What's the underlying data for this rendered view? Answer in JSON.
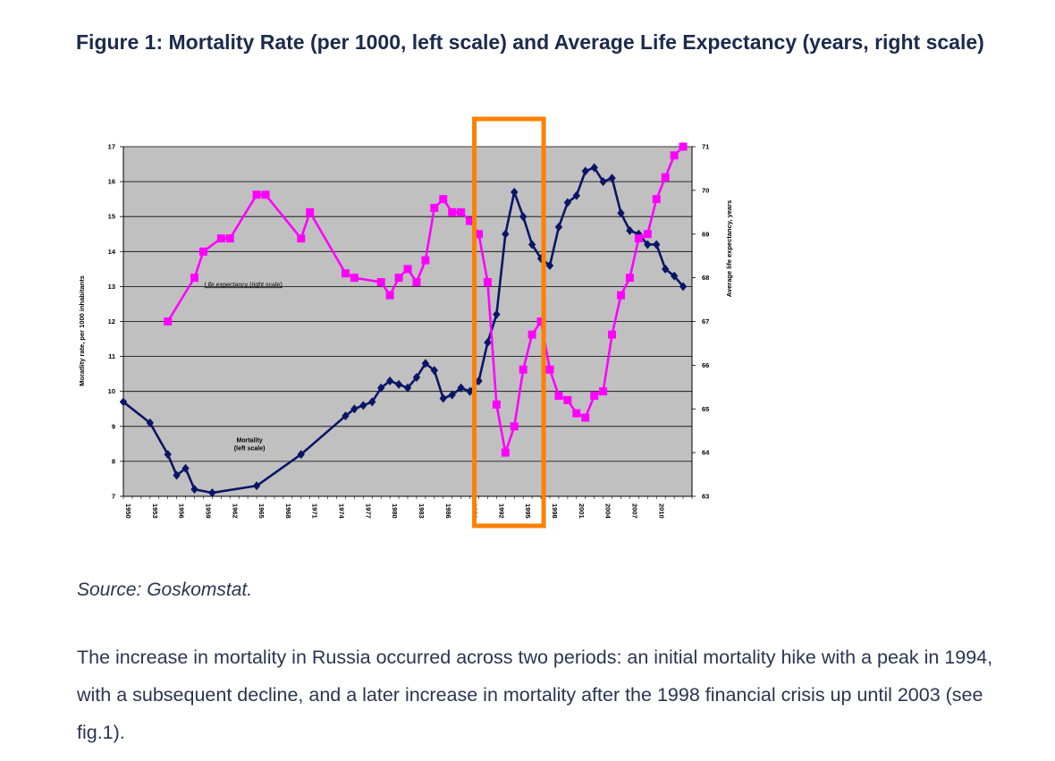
{
  "figure_title": "Figure 1: Mortality Rate (per 1000, left scale) and Average Life Expectancy (years, right scale)",
  "source_text": "Source: Goskomstat.",
  "body_text": "The increase in mortality in Russia occurred across two periods: an initial mortality hike with a peak in 1994, with a subsequent decline, and a later increase in mortality after the 1998 financial crisis up until 2003 (see fig.1).",
  "colors": {
    "mortality": "#0b1566",
    "life_expectancy": "#ff00ff",
    "plot_background": "#c0c0c0",
    "highlight_box": "#ff8000"
  },
  "chart_data": {
    "type": "line",
    "title": "",
    "ylabel": "Moratlity rate, per 1000 inhabitants",
    "y2label": "Average life expectancy, years",
    "ylim": [
      7,
      17
    ],
    "y2lim": [
      63,
      71
    ],
    "xlim": [
      1950,
      2014
    ],
    "y_ticks": [
      7,
      8,
      9,
      10,
      11,
      12,
      13,
      14,
      15,
      16,
      17
    ],
    "y2_ticks": [
      63,
      64,
      65,
      66,
      67,
      68,
      69,
      70,
      71
    ],
    "x_ticks": [
      "1950",
      "1953",
      "1956",
      "1959",
      "1962",
      "1965",
      "1968",
      "1971",
      "1974",
      "1977",
      "1980",
      "1983",
      "1986",
      "1989",
      "1992",
      "1995",
      "1998",
      "2001",
      "2004",
      "2007",
      "2010"
    ],
    "x_tick_values": [
      1950,
      1953,
      1956,
      1959,
      1962,
      1965,
      1968,
      1971,
      1974,
      1977,
      1980,
      1983,
      1986,
      1989,
      1992,
      1995,
      1998,
      2001,
      2004,
      2007,
      2010
    ],
    "grid": true,
    "highlight_range": [
      1989.5,
      1997.3
    ],
    "series": [
      {
        "name": "Mortality",
        "axis": "left",
        "label": [
          "Mortality",
          "(left scale)"
        ],
        "label_anchor": [
          1964.2,
          8.55
        ],
        "x": [
          1950,
          1953,
          1955,
          1956,
          1957,
          1958,
          1960,
          1965,
          1970,
          1975,
          1976,
          1977,
          1978,
          1979,
          1980,
          1981,
          1982,
          1983,
          1984,
          1985,
          1986,
          1987,
          1988,
          1989,
          1990,
          1991,
          1992,
          1993,
          1994,
          1995,
          1996,
          1997,
          1998,
          1999,
          2000,
          2001,
          2002,
          2003,
          2004,
          2005,
          2006,
          2007,
          2008,
          2009,
          2010,
          2011,
          2012,
          2013
        ],
        "y": [
          9.7,
          9.1,
          8.2,
          7.6,
          7.8,
          7.2,
          7.1,
          7.3,
          8.2,
          9.3,
          9.5,
          9.6,
          9.7,
          10.1,
          10.3,
          10.2,
          10.1,
          10.4,
          10.8,
          10.6,
          9.8,
          9.9,
          10.1,
          10.0,
          10.3,
          11.4,
          12.2,
          14.5,
          15.7,
          15.0,
          14.2,
          13.8,
          13.6,
          14.7,
          15.4,
          15.6,
          16.3,
          16.4,
          16.0,
          16.1,
          15.1,
          14.6,
          14.5,
          14.2,
          14.2,
          13.5,
          13.3,
          13.0
        ]
      },
      {
        "name": "Life expectancy",
        "axis": "right",
        "label": [
          "Life expectancy  (right scale)"
        ],
        "label_anchor": [
          1963.5,
          67.8
        ],
        "x": [
          1955,
          1958,
          1959,
          1961,
          1962,
          1965,
          1966,
          1970,
          1971,
          1975,
          1976,
          1979,
          1980,
          1981,
          1982,
          1983,
          1984,
          1985,
          1986,
          1987,
          1988,
          1989,
          1990,
          1991,
          1992,
          1993,
          1994,
          1995,
          1996,
          1997,
          1998,
          1999,
          2000,
          2001,
          2002,
          2003,
          2004,
          2005,
          2006,
          2007,
          2008,
          2009,
          2010,
          2011,
          2012,
          2013
        ],
        "y": [
          67.0,
          68.0,
          68.6,
          68.9,
          68.9,
          69.9,
          69.9,
          68.9,
          69.5,
          68.1,
          68.0,
          67.9,
          67.6,
          68.0,
          68.2,
          67.9,
          68.4,
          69.6,
          69.8,
          69.5,
          69.5,
          69.3,
          69.0,
          67.9,
          65.1,
          64.0,
          64.6,
          65.9,
          66.7,
          67.0,
          65.9,
          65.3,
          65.2,
          64.9,
          64.8,
          65.3,
          65.4,
          66.7,
          67.6,
          68.0,
          68.9,
          69.0,
          69.8,
          70.3,
          70.8,
          71.0
        ]
      }
    ]
  }
}
